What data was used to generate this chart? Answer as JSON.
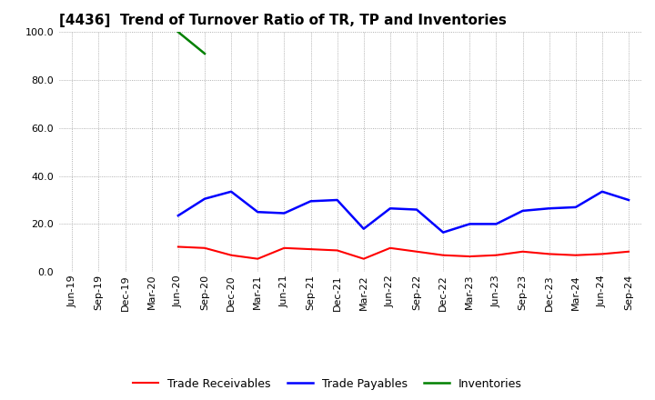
{
  "title": "[4436]  Trend of Turnover Ratio of TR, TP and Inventories",
  "xlabels": [
    "Jun-19",
    "Sep-19",
    "Dec-19",
    "Mar-20",
    "Jun-20",
    "Sep-20",
    "Dec-20",
    "Mar-21",
    "Jun-21",
    "Sep-21",
    "Dec-21",
    "Mar-22",
    "Jun-22",
    "Sep-22",
    "Dec-22",
    "Mar-23",
    "Jun-23",
    "Sep-23",
    "Dec-23",
    "Mar-24",
    "Jun-24",
    "Sep-24"
  ],
  "trade_receivables": [
    null,
    null,
    null,
    null,
    10.5,
    10.0,
    7.0,
    5.5,
    10.0,
    9.5,
    9.0,
    5.5,
    10.0,
    8.5,
    7.0,
    6.5,
    7.0,
    8.5,
    7.5,
    7.0,
    7.5,
    8.5
  ],
  "trade_payables": [
    null,
    null,
    null,
    null,
    23.5,
    30.5,
    33.5,
    25.0,
    24.5,
    29.5,
    30.0,
    18.0,
    26.5,
    26.0,
    16.5,
    20.0,
    20.0,
    25.5,
    26.5,
    27.0,
    33.5,
    30.0
  ],
  "inventories": [
    null,
    null,
    null,
    null,
    100.0,
    91.0,
    null,
    null,
    null,
    null,
    null,
    null,
    null,
    null,
    null,
    null,
    null,
    null,
    null,
    null,
    null,
    null
  ],
  "ylim": [
    0.0,
    100.0
  ],
  "yticks": [
    0.0,
    20.0,
    40.0,
    60.0,
    80.0,
    100.0
  ],
  "color_tr": "#ff0000",
  "color_tp": "#0000ff",
  "color_inv": "#008000",
  "legend_labels": [
    "Trade Receivables",
    "Trade Payables",
    "Inventories"
  ],
  "background_color": "#ffffff",
  "grid_color": "#999999",
  "title_fontsize": 11,
  "tick_fontsize": 8,
  "legend_fontsize": 9
}
